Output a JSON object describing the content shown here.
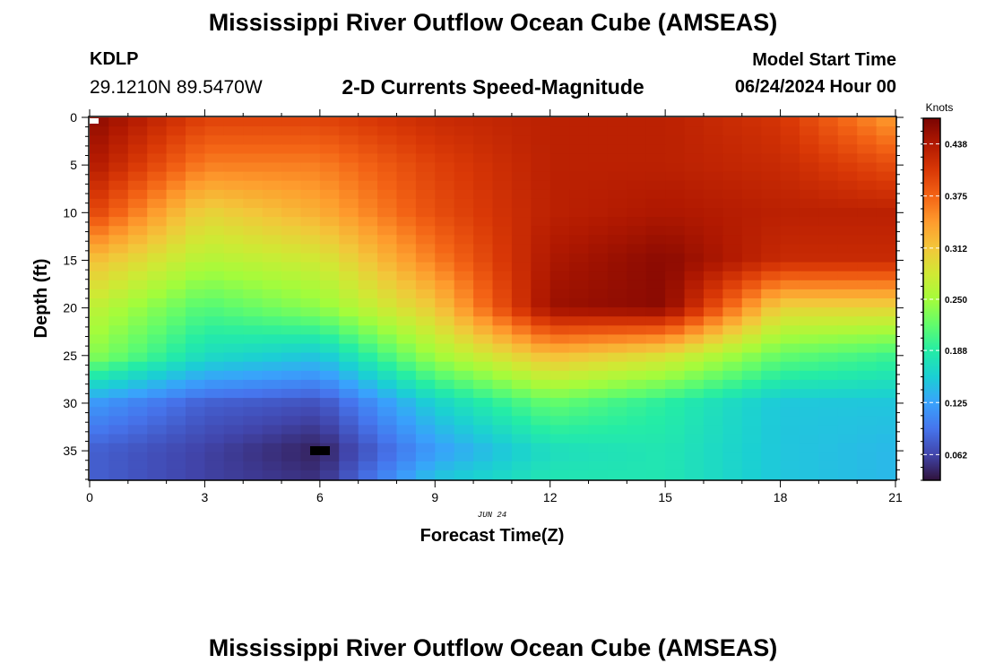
{
  "header": {
    "title": "Mississippi River Outflow Ocean Cube (AMSEAS)",
    "station_id": "KDLP",
    "station_coords": "29.1210N  89.5470W",
    "subtitle": "2-D Currents Speed-Magnitude",
    "model_start_label": "Model Start Time",
    "model_start_value": "06/24/2024 Hour 00"
  },
  "footer": {
    "title": "Mississippi River Outflow Ocean Cube (AMSEAS)"
  },
  "chart_data": {
    "type": "heatmap",
    "title": "2-D Currents Speed-Magnitude",
    "xlabel": "Forecast Time(Z)",
    "ylabel": "Depth (ft)",
    "date_label": "JUN 24",
    "xlim": [
      0,
      21
    ],
    "ylim": [
      38,
      0
    ],
    "x_ticks": [
      "0",
      "3",
      "6",
      "9",
      "12",
      "15",
      "18",
      "21"
    ],
    "y_ticks": [
      "0",
      "5",
      "10",
      "15",
      "20",
      "25",
      "30",
      "35"
    ],
    "colorbar": {
      "label": "Knots",
      "range": [
        0.031,
        0.469
      ],
      "tick_values": [
        0.062,
        0.125,
        0.188,
        0.25,
        0.312,
        0.375,
        0.438
      ],
      "tick_labels": [
        "0.062",
        "0.125",
        "0.188",
        "0.250",
        "0.312",
        "0.375",
        "0.438"
      ],
      "colormap": [
        "#30123b",
        "#4145ab",
        "#4675ed",
        "#39a2fc",
        "#1bcfd4",
        "#24eca6",
        "#61fc6c",
        "#a4fc3b",
        "#d1e834",
        "#f3c63a",
        "#fe9b2d",
        "#f36315",
        "#d93806",
        "#b11901",
        "#7a0402"
      ]
    },
    "speed_field": {
      "description_units": "knots",
      "time_steps": [
        0,
        3,
        6,
        9,
        12,
        15,
        18,
        21
      ],
      "depth_levels_ft": [
        0,
        5,
        10,
        15,
        20,
        25,
        30,
        35,
        38
      ],
      "values": [
        [
          0.46,
          0.4,
          0.4,
          0.42,
          0.43,
          0.43,
          0.41,
          0.34
        ],
        [
          0.44,
          0.36,
          0.36,
          0.4,
          0.43,
          0.43,
          0.42,
          0.39
        ],
        [
          0.4,
          0.3,
          0.33,
          0.39,
          0.43,
          0.44,
          0.43,
          0.43
        ],
        [
          0.32,
          0.26,
          0.28,
          0.36,
          0.44,
          0.46,
          0.42,
          0.42
        ],
        [
          0.27,
          0.21,
          0.24,
          0.31,
          0.45,
          0.46,
          0.3,
          0.3
        ],
        [
          0.24,
          0.17,
          0.15,
          0.25,
          0.32,
          0.29,
          0.22,
          0.2
        ],
        [
          0.12,
          0.08,
          0.07,
          0.16,
          0.22,
          0.19,
          0.15,
          0.15
        ],
        [
          0.08,
          0.06,
          0.04,
          0.12,
          0.17,
          0.18,
          0.15,
          0.14
        ],
        [
          0.08,
          0.06,
          0.05,
          0.15,
          0.18,
          0.18,
          0.15,
          0.14
        ]
      ]
    }
  }
}
